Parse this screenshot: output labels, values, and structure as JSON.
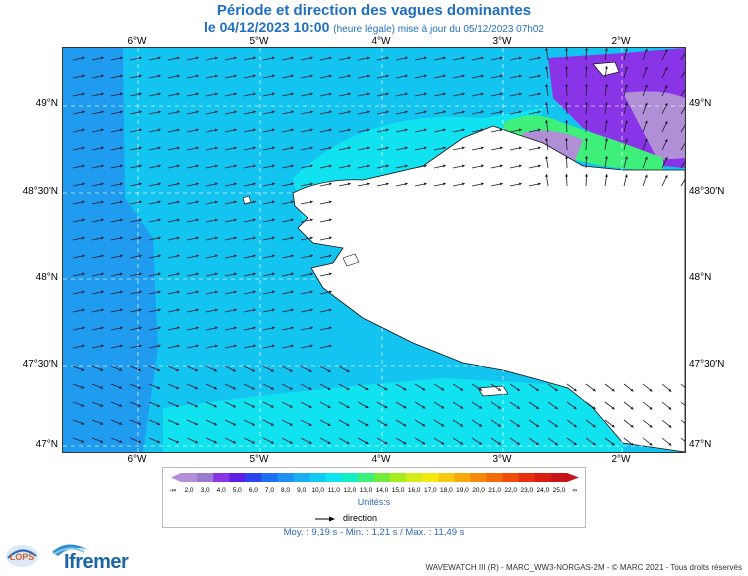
{
  "title": {
    "line1": "Période et direction des vagues dominantes",
    "date": "le 04/12/2023 10:00",
    "subtitle": "(heure légale) mise à jour du 05/12/2023 07h02"
  },
  "axes": {
    "lon_labels": [
      "6°W",
      "5°W",
      "4°W",
      "3°W",
      "2°W"
    ],
    "lat_labels": [
      "49°N",
      "48°30'N",
      "48°N",
      "47°30'N",
      "47°N"
    ]
  },
  "legend": {
    "ticks": [
      "-∞",
      "2,0",
      "3,0",
      "4,0",
      "5,0",
      "6,0",
      "7,0",
      "8,0",
      "9,0",
      "10,0",
      "11,0",
      "12,0",
      "13,0",
      "14,0",
      "15,0",
      "16,0",
      "17,0",
      "18,0",
      "19,0",
      "20,0",
      "21,0",
      "22,0",
      "23,0",
      "24,0",
      "25,0",
      "∞"
    ],
    "colors": [
      "#b58ed9",
      "#9a7ccf",
      "#8a34e8",
      "#5f1ee6",
      "#2a45f0",
      "#1f6ff2",
      "#1e90f0",
      "#19b0f2",
      "#12cbf0",
      "#0fe5f0",
      "#12f0c2",
      "#3af07a",
      "#72ec3a",
      "#a6ec1e",
      "#d6ec18",
      "#f5e812",
      "#f7c90f",
      "#f7a90c",
      "#f5870b",
      "#f36a0a",
      "#ef4c0a",
      "#e5300b",
      "#d71e10",
      "#c4141a"
    ],
    "units": "Unités:s",
    "direction_label": "direction"
  },
  "stats": "Moy. : 9,19 s  -  Min. : 1,21 s / Max. : 11,49 s",
  "credit": "WAVEWATCH III (R) - MARC_WW3-NORGAS-2M - © MARC 2021 - Tous droits réservés",
  "logos": {
    "lops": "LOPS",
    "ifremer": "Ifremer"
  },
  "map_colors": {
    "sea_deep": "#1f9cf0",
    "sea_mid": "#12c4ef",
    "sea_light": "#10e2ef",
    "land": "#ffffff",
    "channel_purple": "#8a34e8",
    "channel_lilac": "#b08fd6",
    "channel_green": "#3ef07a",
    "arrow": "#1a1a2e"
  }
}
